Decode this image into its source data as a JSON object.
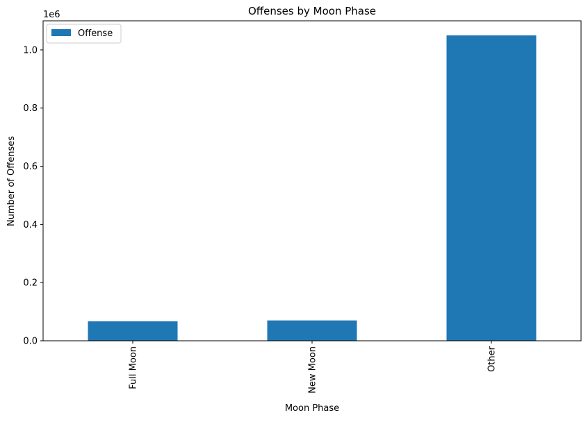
{
  "chart_data": {
    "type": "bar",
    "title": "Offenses by Moon Phase",
    "xlabel": "Moon Phase",
    "ylabel": "Number of Offenses",
    "categories": [
      "Full Moon",
      "New Moon",
      "Other"
    ],
    "series": [
      {
        "name": "Offense",
        "values": [
          67000,
          70000,
          1050000
        ],
        "color": "#1f77b4"
      }
    ],
    "ylim": [
      0,
      1100000
    ],
    "yticks": [
      0,
      200000,
      400000,
      600000,
      800000,
      1000000
    ],
    "ytick_labels": [
      "0.0",
      "0.2",
      "0.4",
      "0.6",
      "0.8",
      "1.0"
    ],
    "y_offset_label": "1e6",
    "legend_position": "top-left",
    "grid": false
  }
}
